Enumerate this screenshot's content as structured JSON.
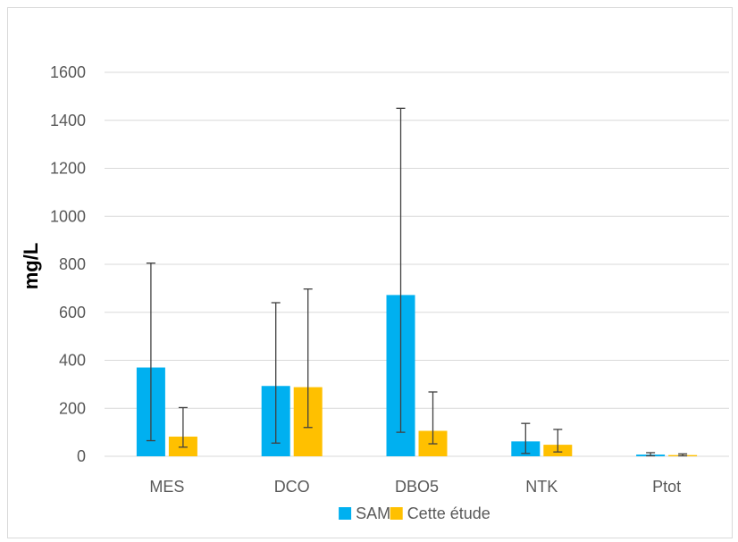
{
  "chart_data": {
    "type": "bar",
    "title": "",
    "xlabel": "",
    "ylabel": "mg/L",
    "ylim": [
      0,
      1600
    ],
    "yticks": [
      0,
      200,
      400,
      600,
      800,
      1000,
      1200,
      1400,
      1600
    ],
    "grid": "horizontal",
    "legend_position": "bottom",
    "categories": [
      "MES",
      "DCO",
      "DBO5",
      "NTK",
      "Ptot"
    ],
    "series": [
      {
        "name": "SAM",
        "color": "#00b0f0",
        "values": [
          370,
          293,
          672,
          62,
          7
        ],
        "error_low": [
          65,
          55,
          100,
          12,
          2
        ],
        "error_high": [
          805,
          640,
          1450,
          137,
          15
        ]
      },
      {
        "name": "Cette étude",
        "color": "#ffc000",
        "values": [
          82,
          288,
          106,
          48,
          5
        ],
        "error_low": [
          38,
          120,
          52,
          18,
          2
        ],
        "error_high": [
          203,
          697,
          268,
          112,
          10
        ]
      }
    ]
  }
}
